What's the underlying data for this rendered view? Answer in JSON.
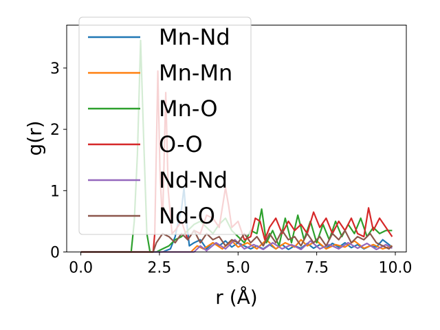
{
  "chart_data": {
    "type": "line",
    "xlabel": "r (Å)",
    "ylabel": "g(r)",
    "xlim": [
      -0.45,
      10.35
    ],
    "ylim": [
      0,
      3.7
    ],
    "xticks": [
      0.0,
      2.5,
      5.0,
      7.5,
      10.0
    ],
    "xtick_labels": [
      "0.0",
      "2.5",
      "5.0",
      "7.5",
      "10.0"
    ],
    "yticks": [
      0,
      1,
      2,
      3
    ],
    "ytick_labels": [
      "0",
      "1",
      "2",
      "3"
    ],
    "grid": false,
    "legend_position": "upper-left",
    "series": [
      {
        "name": "Mn-Nd",
        "color": "#1f77b4",
        "points": [
          [
            0,
            0
          ],
          [
            2.6,
            0
          ],
          [
            2.85,
            0.05
          ],
          [
            3.0,
            0.25
          ],
          [
            3.1,
            0.5
          ],
          [
            3.2,
            0.7
          ],
          [
            3.28,
            1.05
          ],
          [
            3.36,
            0.5
          ],
          [
            3.45,
            0.1
          ],
          [
            3.6,
            0.15
          ],
          [
            3.8,
            0.2
          ],
          [
            4.0,
            0.05
          ],
          [
            4.2,
            0.15
          ],
          [
            4.4,
            0.1
          ],
          [
            4.6,
            0.18
          ],
          [
            4.8,
            0.08
          ],
          [
            5.0,
            0.15
          ],
          [
            5.2,
            0.1
          ],
          [
            5.4,
            0.05
          ],
          [
            5.6,
            0.1
          ],
          [
            5.8,
            0.05
          ],
          [
            6.0,
            0.12
          ],
          [
            6.2,
            0.05
          ],
          [
            6.4,
            0.12
          ],
          [
            6.6,
            0.04
          ],
          [
            6.8,
            0.1
          ],
          [
            7.0,
            0.06
          ],
          [
            7.2,
            0.14
          ],
          [
            7.4,
            0.06
          ],
          [
            7.6,
            0.12
          ],
          [
            7.8,
            0.06
          ],
          [
            8.0,
            0.14
          ],
          [
            8.2,
            0.08
          ],
          [
            8.4,
            0.15
          ],
          [
            8.6,
            0.07
          ],
          [
            8.8,
            0.12
          ],
          [
            9.0,
            0.05
          ],
          [
            9.2,
            0.1
          ],
          [
            9.4,
            0.08
          ],
          [
            9.6,
            0.2
          ],
          [
            9.8,
            0.12
          ],
          [
            9.9,
            0.08
          ]
        ]
      },
      {
        "name": "Mn-Mn",
        "color": "#ff7f0e",
        "points": [
          [
            0,
            0
          ],
          [
            3.5,
            0
          ],
          [
            3.7,
            0.1
          ],
          [
            3.9,
            0.05
          ],
          [
            4.2,
            0.15
          ],
          [
            4.5,
            0.05
          ],
          [
            4.8,
            0.18
          ],
          [
            5.0,
            0.08
          ],
          [
            5.3,
            0.15
          ],
          [
            5.6,
            0.05
          ],
          [
            5.9,
            0.2
          ],
          [
            6.2,
            0.05
          ],
          [
            6.5,
            0.15
          ],
          [
            6.8,
            0.08
          ],
          [
            7.0,
            0.2
          ],
          [
            7.2,
            0.1
          ],
          [
            7.5,
            0.18
          ],
          [
            7.8,
            0.05
          ],
          [
            8.1,
            0.12
          ],
          [
            8.4,
            0.08
          ],
          [
            8.7,
            0.18
          ],
          [
            9.0,
            0.06
          ],
          [
            9.3,
            0.12
          ],
          [
            9.6,
            0.05
          ],
          [
            9.9,
            0.1
          ]
        ]
      },
      {
        "name": "Mn-O",
        "color": "#2ca02c",
        "points": [
          [
            0,
            0
          ],
          [
            1.6,
            0
          ],
          [
            1.7,
            0.5
          ],
          [
            1.8,
            1.6
          ],
          [
            1.9,
            3.45
          ],
          [
            2.0,
            1.8
          ],
          [
            2.1,
            0.3
          ],
          [
            2.2,
            0
          ],
          [
            2.4,
            0
          ],
          [
            2.6,
            0.05
          ],
          [
            2.8,
            0.1
          ],
          [
            3.0,
            0.2
          ],
          [
            3.2,
            0.25
          ],
          [
            3.4,
            0.35
          ],
          [
            3.6,
            0.45
          ],
          [
            3.8,
            0.5
          ],
          [
            4.0,
            0.4
          ],
          [
            4.2,
            0.3
          ],
          [
            4.4,
            0.45
          ],
          [
            4.6,
            0.55
          ],
          [
            4.8,
            0.35
          ],
          [
            5.0,
            0.25
          ],
          [
            5.2,
            0.15
          ],
          [
            5.4,
            0.35
          ],
          [
            5.6,
            0.3
          ],
          [
            5.75,
            0.7
          ],
          [
            5.9,
            0.15
          ],
          [
            6.1,
            0.35
          ],
          [
            6.3,
            0.1
          ],
          [
            6.5,
            0.55
          ],
          [
            6.7,
            0.15
          ],
          [
            6.9,
            0.6
          ],
          [
            7.1,
            0.2
          ],
          [
            7.3,
            0.5
          ],
          [
            7.5,
            0.15
          ],
          [
            7.7,
            0.45
          ],
          [
            7.9,
            0.2
          ],
          [
            8.1,
            0.5
          ],
          [
            8.3,
            0.25
          ],
          [
            8.5,
            0.45
          ],
          [
            8.7,
            0.3
          ],
          [
            8.9,
            0.55
          ],
          [
            9.1,
            0.25
          ],
          [
            9.3,
            0.4
          ],
          [
            9.5,
            0.3
          ],
          [
            9.7,
            0.35
          ],
          [
            9.9,
            0.35
          ]
        ]
      },
      {
        "name": "O-O",
        "color": "#d62728",
        "points": [
          [
            0,
            0
          ],
          [
            2.3,
            0
          ],
          [
            2.35,
            0.3
          ],
          [
            2.45,
            2.95
          ],
          [
            2.52,
            1.2
          ],
          [
            2.6,
            0.5
          ],
          [
            2.7,
            2.6
          ],
          [
            2.78,
            1.0
          ],
          [
            2.9,
            0.3
          ],
          [
            3.0,
            0.35
          ],
          [
            3.2,
            0.5
          ],
          [
            3.4,
            0.2
          ],
          [
            3.6,
            0.35
          ],
          [
            3.8,
            0.3
          ],
          [
            4.0,
            0.6
          ],
          [
            4.2,
            0.55
          ],
          [
            4.4,
            0.4
          ],
          [
            4.6,
            1.05
          ],
          [
            4.7,
            0.75
          ],
          [
            4.8,
            0.4
          ],
          [
            5.0,
            0.5
          ],
          [
            5.2,
            0.2
          ],
          [
            5.4,
            0.25
          ],
          [
            5.55,
            0.55
          ],
          [
            5.7,
            0.5
          ],
          [
            5.85,
            0.2
          ],
          [
            6.0,
            0.4
          ],
          [
            6.2,
            0.55
          ],
          [
            6.4,
            0.3
          ],
          [
            6.6,
            0.5
          ],
          [
            6.8,
            0.35
          ],
          [
            7.0,
            0.45
          ],
          [
            7.2,
            0.3
          ],
          [
            7.4,
            0.65
          ],
          [
            7.6,
            0.4
          ],
          [
            7.8,
            0.55
          ],
          [
            8.0,
            0.3
          ],
          [
            8.2,
            0.5
          ],
          [
            8.4,
            0.35
          ],
          [
            8.6,
            0.55
          ],
          [
            8.8,
            0.3
          ],
          [
            9.0,
            0.25
          ],
          [
            9.15,
            0.72
          ],
          [
            9.3,
            0.35
          ],
          [
            9.5,
            0.55
          ],
          [
            9.7,
            0.4
          ],
          [
            9.9,
            0.25
          ]
        ]
      },
      {
        "name": "Nd-Nd",
        "color": "#9467bd",
        "points": [
          [
            0,
            0
          ],
          [
            3.6,
            0
          ],
          [
            3.8,
            0.1
          ],
          [
            4.0,
            0.02
          ],
          [
            4.3,
            0.15
          ],
          [
            4.6,
            0.05
          ],
          [
            4.9,
            0.2
          ],
          [
            5.2,
            0.05
          ],
          [
            5.5,
            0.12
          ],
          [
            5.8,
            0.04
          ],
          [
            6.1,
            0.15
          ],
          [
            6.4,
            0.05
          ],
          [
            6.7,
            0.12
          ],
          [
            7.0,
            0.04
          ],
          [
            7.3,
            0.18
          ],
          [
            7.6,
            0.05
          ],
          [
            7.9,
            0.12
          ],
          [
            8.2,
            0.05
          ],
          [
            8.5,
            0.15
          ],
          [
            8.8,
            0.06
          ],
          [
            9.1,
            0.14
          ],
          [
            9.4,
            0.04
          ],
          [
            9.7,
            0.12
          ],
          [
            9.9,
            0.06
          ]
        ]
      },
      {
        "name": "Nd-O",
        "color": "#8c564b",
        "points": [
          [
            0,
            0
          ],
          [
            2.3,
            0
          ],
          [
            2.4,
            0.15
          ],
          [
            2.6,
            0.3
          ],
          [
            2.8,
            0.25
          ],
          [
            3.0,
            0.15
          ],
          [
            3.2,
            0.3
          ],
          [
            3.4,
            0.2
          ],
          [
            3.6,
            0.35
          ],
          [
            3.8,
            0.15
          ],
          [
            4.0,
            0.3
          ],
          [
            4.2,
            0.2
          ],
          [
            4.4,
            0.25
          ],
          [
            4.6,
            0.1
          ],
          [
            4.8,
            0.2
          ],
          [
            5.0,
            0.15
          ],
          [
            5.2,
            0.3
          ],
          [
            5.4,
            0.15
          ],
          [
            5.6,
            0.25
          ],
          [
            5.8,
            0.1
          ],
          [
            6.0,
            0.3
          ],
          [
            6.2,
            0.15
          ],
          [
            6.4,
            0.35
          ],
          [
            6.6,
            0.2
          ],
          [
            6.8,
            0.25
          ],
          [
            7.0,
            0.1
          ],
          [
            7.2,
            0.3
          ],
          [
            7.4,
            0.15
          ],
          [
            7.6,
            0.25
          ],
          [
            7.8,
            0.1
          ],
          [
            8.0,
            0.3
          ],
          [
            8.2,
            0.2
          ],
          [
            8.4,
            0.35
          ],
          [
            8.6,
            0.15
          ],
          [
            8.8,
            0.25
          ],
          [
            9.0,
            0.2
          ],
          [
            9.2,
            0.3
          ],
          [
            9.4,
            0.15
          ],
          [
            9.6,
            0.1
          ],
          [
            9.8,
            0.05
          ],
          [
            9.9,
            0.1
          ]
        ]
      }
    ]
  }
}
